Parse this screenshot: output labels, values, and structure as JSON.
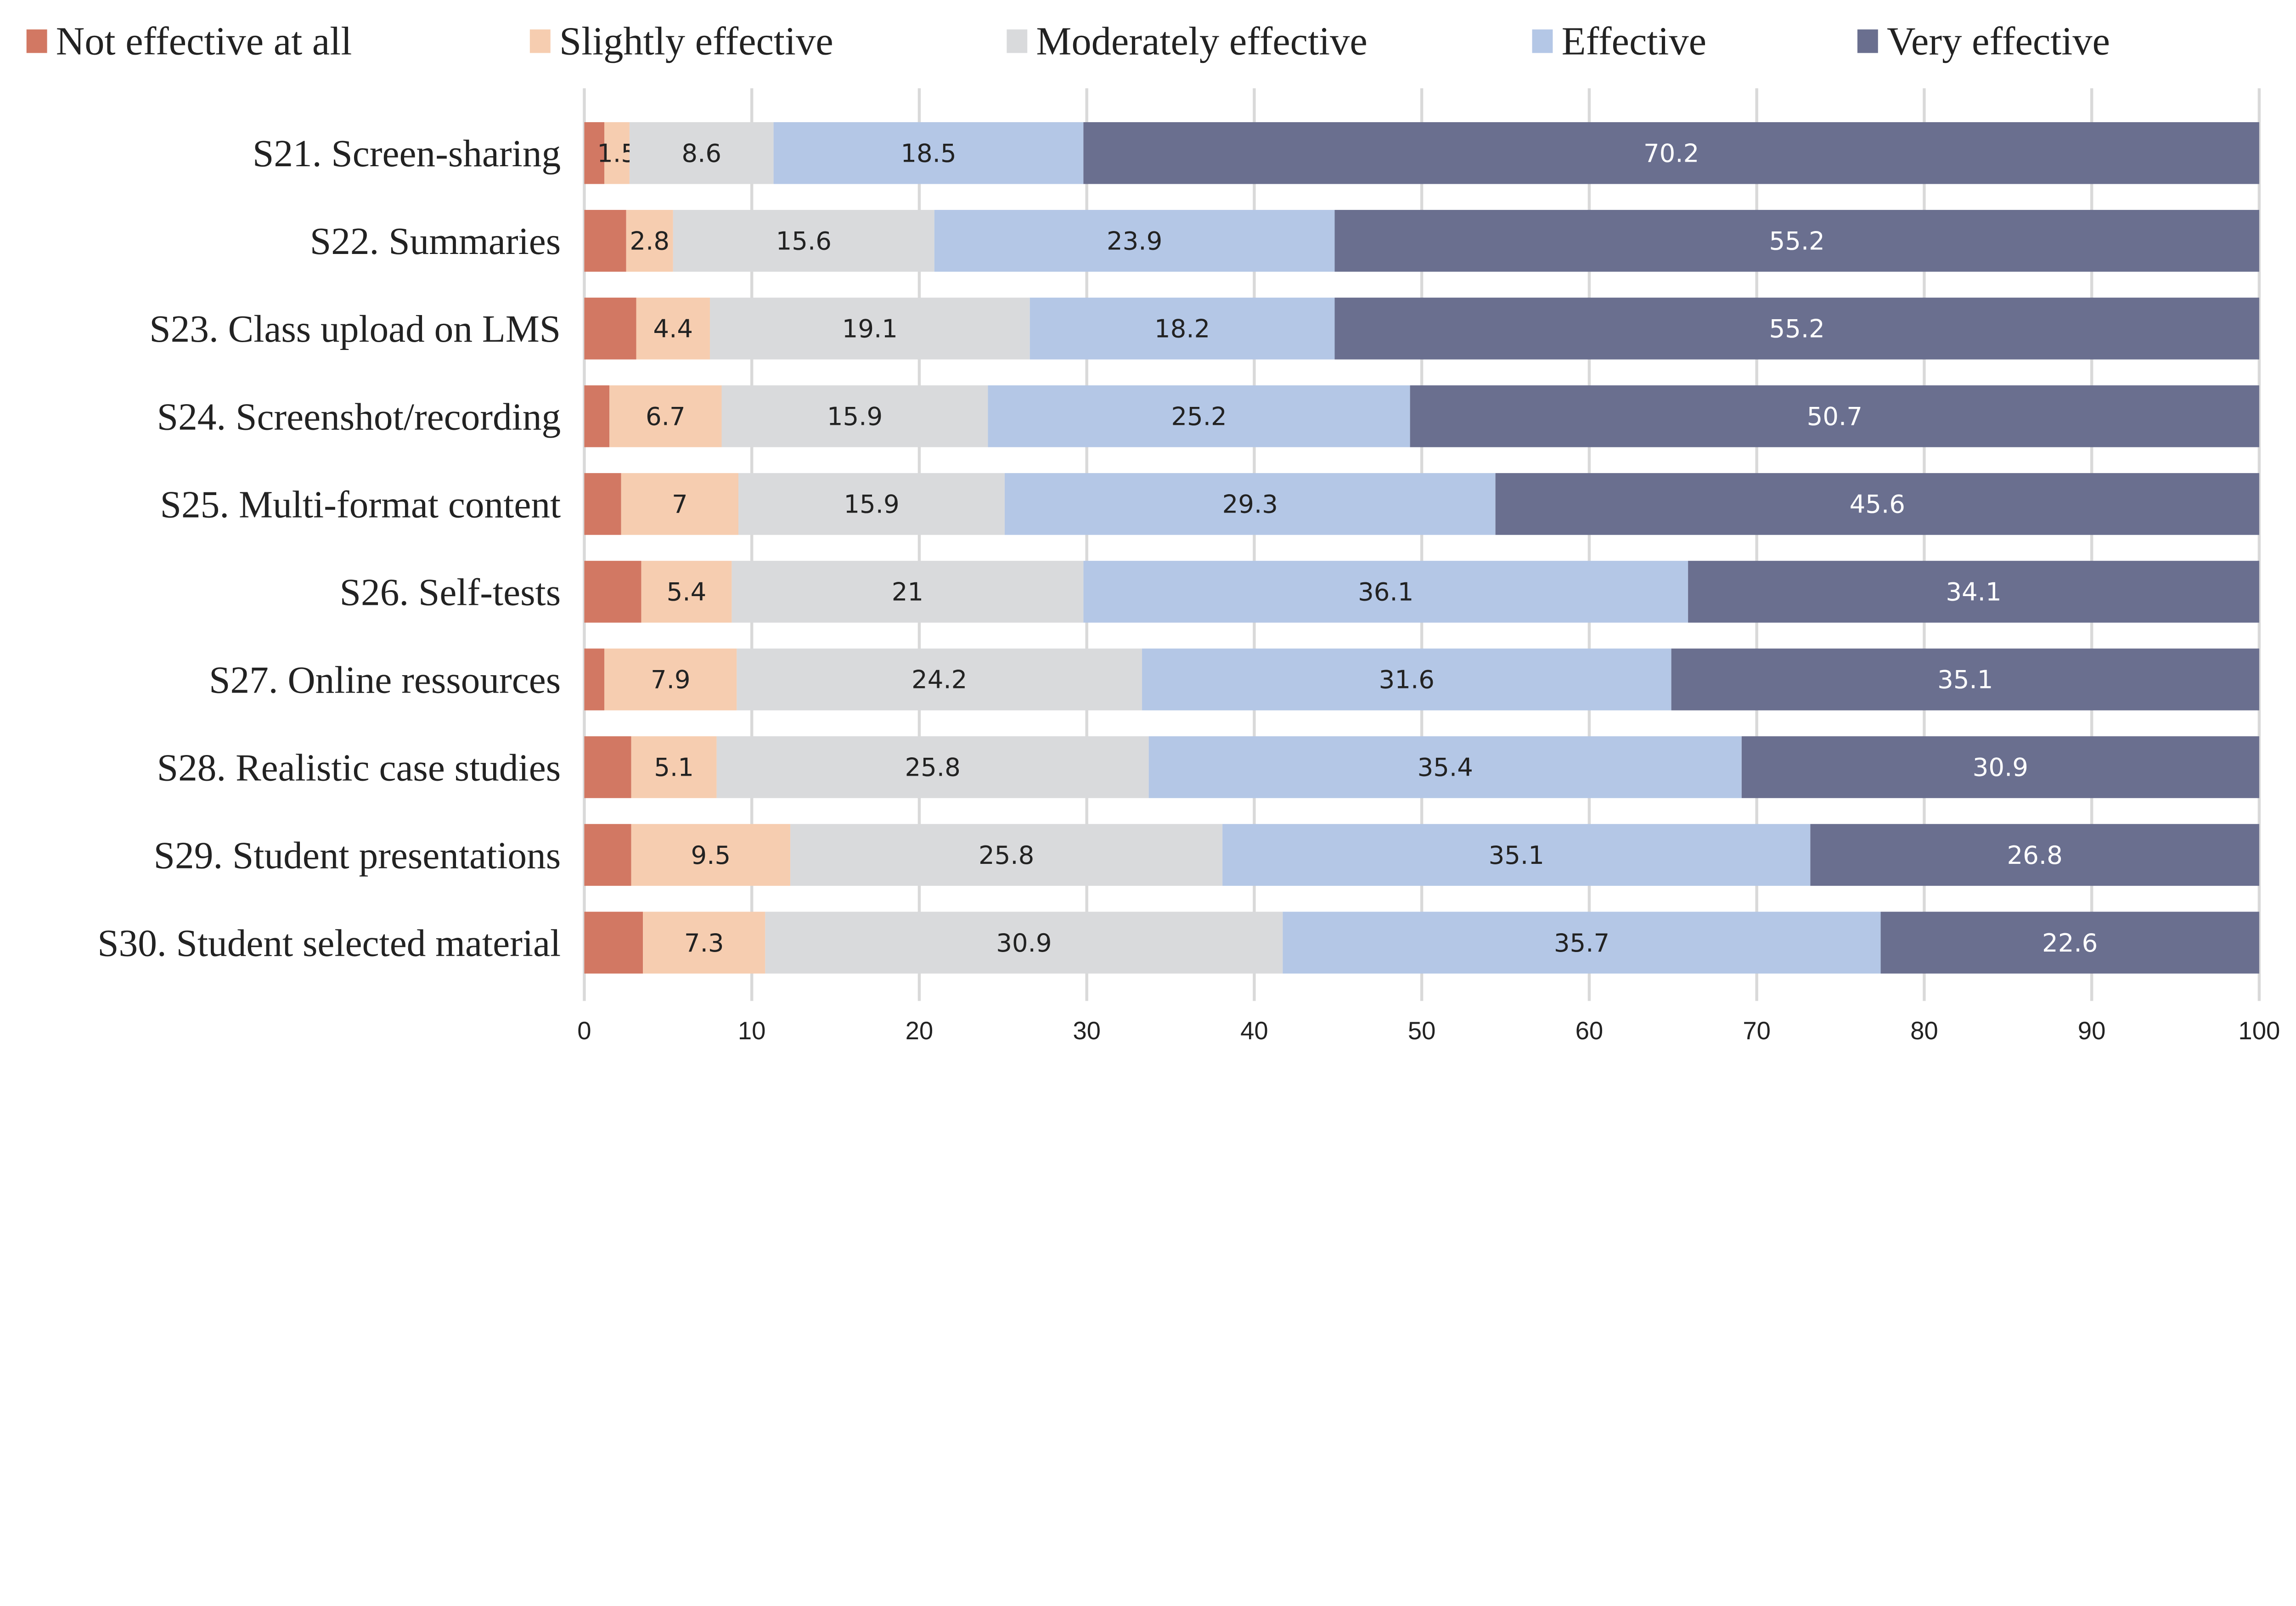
{
  "chart_data": {
    "type": "bar",
    "orientation": "horizontal",
    "stacked": true,
    "categories": [
      "S21. Screen-sharing",
      "S22. Summaries",
      "S23. Class upload on LMS",
      "S24. Screenshot/recording",
      "S25. Multi-format content",
      "S26. Self-tests",
      "S27. Online ressources",
      "S28. Realistic case studies",
      "S29. Student presentations",
      "S30. Student selected material"
    ],
    "series": [
      {
        "name": "Not effective at all",
        "color": "#d27863",
        "labeled": false,
        "values": [
          1.2,
          2.5,
          3.1,
          1.5,
          2.2,
          3.4,
          1.2,
          2.8,
          2.8,
          3.5
        ]
      },
      {
        "name": "Slightly effective",
        "color": "#f6cdb0",
        "labeled": true,
        "values": [
          1.5,
          2.8,
          4.4,
          6.7,
          7,
          5.4,
          7.9,
          5.1,
          9.5,
          7.3
        ]
      },
      {
        "name": "Moderately effective",
        "color": "#d9dadc",
        "labeled": true,
        "values": [
          8.6,
          15.6,
          19.1,
          15.9,
          15.9,
          21,
          24.2,
          25.8,
          25.8,
          30.9
        ]
      },
      {
        "name": "Effective",
        "color": "#b4c7e6",
        "labeled": true,
        "values": [
          18.5,
          23.9,
          18.2,
          25.2,
          29.3,
          36.1,
          31.6,
          35.4,
          35.1,
          35.7
        ]
      },
      {
        "name": "Very effective",
        "color": "#6a6f8f",
        "labeled": true,
        "values": [
          70.2,
          55.2,
          55.2,
          50.7,
          45.6,
          34.1,
          35.1,
          30.9,
          26.8,
          22.6
        ]
      }
    ],
    "xlim": [
      0,
      100
    ],
    "xticks": [
      0,
      10,
      20,
      30,
      40,
      50,
      60,
      70,
      80,
      90,
      100
    ],
    "grid": "vertical",
    "legend": "top"
  }
}
